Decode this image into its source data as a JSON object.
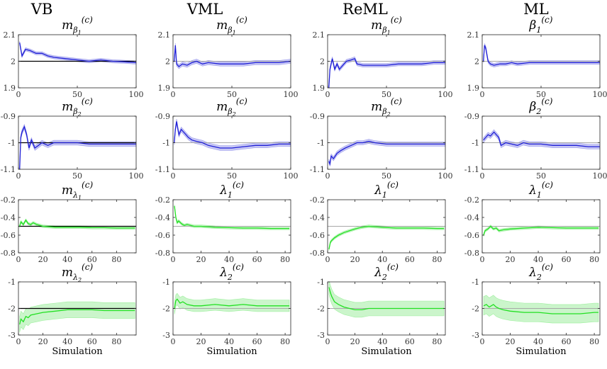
{
  "figure": {
    "columns": [
      "VB",
      "VML",
      "ReML",
      "ML"
    ],
    "xlabel": "Simulation",
    "colors": {
      "blue": "#1f1fd6",
      "blue_band": "#b6b6f0",
      "green": "#22e022",
      "green_band": "#b9f2b9",
      "ref_black": "#000000",
      "ref_gray": "#a8a8a8"
    }
  },
  "chart_data": [
    {
      "type": "line",
      "row": 0,
      "col": 0,
      "title": {
        "base": "m",
        "sub": "β",
        "subsub": "1",
        "sup": "(c)"
      },
      "x": [
        1,
        3,
        6,
        10,
        15,
        20,
        25,
        30,
        40,
        50,
        60,
        70,
        80,
        90,
        100
      ],
      "values": [
        2.07,
        2.02,
        2.045,
        2.04,
        2.03,
        2.03,
        2.02,
        2.015,
        2.01,
        2.005,
        2.0,
        2.005,
        2.0,
        1.998,
        1.995
      ],
      "band": 0.006,
      "true_value": 2.0,
      "ref_color": "black",
      "xlim": [
        0,
        100
      ],
      "ylim": [
        1.9,
        2.1
      ],
      "xticks": [
        0,
        50,
        100
      ],
      "yticks": [
        1.9,
        2,
        2.1
      ],
      "series_color": "blue",
      "show_xlabel": false
    },
    {
      "type": "line",
      "row": 0,
      "col": 1,
      "title": {
        "base": "m",
        "sub": "β",
        "subsub": "1",
        "sup": "(c)"
      },
      "x": [
        1,
        2,
        3,
        5,
        8,
        12,
        16,
        20,
        25,
        30,
        40,
        50,
        60,
        70,
        80,
        90,
        100
      ],
      "values": [
        2.0,
        2.06,
        1.99,
        1.98,
        1.99,
        1.985,
        1.995,
        2.0,
        1.99,
        1.995,
        1.99,
        1.99,
        1.99,
        1.995,
        1.995,
        1.995,
        2.0
      ],
      "band": 0.008,
      "true_value": 2.0,
      "ref_color": "gray",
      "xlim": [
        0,
        100
      ],
      "ylim": [
        1.9,
        2.1
      ],
      "xticks": [
        0,
        50,
        100
      ],
      "yticks": [
        1.9,
        2,
        2.1
      ],
      "series_color": "blue",
      "show_xlabel": false
    },
    {
      "type": "line",
      "row": 0,
      "col": 2,
      "title": {
        "base": "m",
        "sub": "β",
        "subsub": "1",
        "sup": "(c)"
      },
      "x": [
        1,
        2,
        4,
        6,
        8,
        10,
        13,
        16,
        20,
        23,
        25,
        30,
        40,
        50,
        60,
        70,
        80,
        90,
        100
      ],
      "values": [
        1.9,
        1.97,
        2.01,
        1.97,
        1.99,
        1.97,
        1.985,
        2.0,
        2.005,
        2.01,
        1.99,
        1.985,
        1.985,
        1.985,
        1.99,
        1.99,
        1.99,
        1.995,
        1.995
      ],
      "band": 0.007,
      "true_value": 2.0,
      "ref_color": "gray",
      "xlim": [
        0,
        100
      ],
      "ylim": [
        1.9,
        2.1
      ],
      "xticks": [
        0,
        50,
        100
      ],
      "yticks": [
        1.9,
        2,
        2.1
      ],
      "series_color": "blue",
      "show_xlabel": false
    },
    {
      "type": "line",
      "row": 0,
      "col": 3,
      "title": {
        "base": "β",
        "sub": "1",
        "subsub": "",
        "sup": "(c)"
      },
      "x": [
        1,
        2,
        3,
        5,
        7,
        10,
        15,
        20,
        25,
        30,
        40,
        50,
        60,
        70,
        80,
        90,
        100
      ],
      "values": [
        2.0,
        2.06,
        2.05,
        2.0,
        1.99,
        1.985,
        1.99,
        1.99,
        1.995,
        1.99,
        1.995,
        1.995,
        1.995,
        1.995,
        1.995,
        1.995,
        1.995
      ],
      "band": 0.007,
      "true_value": 2.0,
      "ref_color": "gray",
      "xlim": [
        0,
        100
      ],
      "ylim": [
        1.9,
        2.1
      ],
      "xticks": [
        0,
        50,
        100
      ],
      "yticks": [
        1.9,
        2,
        2.1
      ],
      "series_color": "blue",
      "show_xlabel": false
    },
    {
      "type": "line",
      "row": 1,
      "col": 0,
      "title": {
        "base": "m",
        "sub": "β",
        "subsub": "2",
        "sup": "(c)"
      },
      "x": [
        1,
        2,
        3,
        5,
        7,
        9,
        11,
        14,
        17,
        20,
        25,
        30,
        40,
        50,
        60,
        70,
        80,
        90,
        100
      ],
      "values": [
        -1.1,
        -0.98,
        -0.96,
        -0.94,
        -0.97,
        -1.02,
        -0.99,
        -1.02,
        -1.01,
        -1.0,
        -1.01,
        -1.0,
        -1.0,
        -1.0,
        -1.005,
        -1.005,
        -1.005,
        -1.005,
        -1.005
      ],
      "band": 0.009,
      "true_value": -1.0,
      "ref_color": "black",
      "xlim": [
        0,
        100
      ],
      "ylim": [
        -1.1,
        -0.9
      ],
      "xticks": [
        0,
        50,
        100
      ],
      "yticks": [
        -1.1,
        -1,
        -0.9
      ],
      "series_color": "blue",
      "show_xlabel": false
    },
    {
      "type": "line",
      "row": 1,
      "col": 1,
      "title": {
        "base": "m",
        "sub": "β",
        "subsub": "2",
        "sup": "(c)"
      },
      "x": [
        1,
        2,
        3,
        5,
        7,
        9,
        11,
        13,
        16,
        20,
        25,
        30,
        40,
        50,
        60,
        70,
        80,
        90,
        100
      ],
      "values": [
        -1.0,
        -0.95,
        -0.92,
        -0.97,
        -0.95,
        -0.96,
        -0.97,
        -0.98,
        -0.99,
        -0.995,
        -1.0,
        -1.01,
        -1.02,
        -1.02,
        -1.015,
        -1.01,
        -1.01,
        -1.005,
        -1.005
      ],
      "band": 0.009,
      "true_value": -1.0,
      "ref_color": "gray",
      "xlim": [
        0,
        100
      ],
      "ylim": [
        -1.1,
        -0.9
      ],
      "xticks": [
        0,
        50,
        100
      ],
      "yticks": [
        -1.1,
        -1,
        -0.9
      ],
      "series_color": "blue",
      "show_xlabel": false
    },
    {
      "type": "line",
      "row": 1,
      "col": 2,
      "title": {
        "base": "m",
        "sub": "β",
        "subsub": "2",
        "sup": "(c)"
      },
      "x": [
        1,
        2,
        3,
        5,
        8,
        11,
        15,
        20,
        25,
        30,
        35,
        40,
        50,
        60,
        70,
        80,
        90,
        100
      ],
      "values": [
        -1.07,
        -1.08,
        -1.05,
        -1.06,
        -1.04,
        -1.03,
        -1.02,
        -1.01,
        -1.0,
        -1.0,
        -0.995,
        -1.0,
        -1.005,
        -1.005,
        -1.005,
        -1.005,
        -1.005,
        -1.005
      ],
      "band": 0.008,
      "true_value": -1.0,
      "ref_color": "gray",
      "xlim": [
        0,
        100
      ],
      "ylim": [
        -1.1,
        -0.9
      ],
      "xticks": [
        0,
        50,
        100
      ],
      "yticks": [
        -1.1,
        -1,
        -0.9
      ],
      "series_color": "blue",
      "show_xlabel": false
    },
    {
      "type": "line",
      "row": 1,
      "col": 3,
      "title": {
        "base": "β",
        "sub": "2",
        "subsub": "",
        "sup": "(c)"
      },
      "x": [
        1,
        3,
        5,
        7,
        10,
        12,
        14,
        16,
        20,
        25,
        30,
        35,
        40,
        50,
        60,
        70,
        80,
        90,
        100
      ],
      "values": [
        -0.99,
        -0.98,
        -0.97,
        -0.975,
        -0.96,
        -0.97,
        -0.98,
        -1.01,
        -1.0,
        -1.005,
        -1.01,
        -1.0,
        -1.005,
        -1.005,
        -1.01,
        -1.01,
        -1.01,
        -1.015,
        -1.015
      ],
      "band": 0.009,
      "true_value": -1.0,
      "ref_color": "gray",
      "xlim": [
        0,
        100
      ],
      "ylim": [
        -1.1,
        -0.9
      ],
      "xticks": [
        0,
        50,
        100
      ],
      "yticks": [
        -1.1,
        -1,
        -0.9
      ],
      "series_color": "blue",
      "show_xlabel": false
    },
    {
      "type": "line",
      "row": 2,
      "col": 0,
      "title": {
        "base": "m",
        "sub": "λ",
        "subsub": "1",
        "sup": "(c)"
      },
      "x": [
        1,
        2,
        4,
        6,
        8,
        10,
        12,
        15,
        20,
        30,
        40,
        50,
        60,
        70,
        80,
        95
      ],
      "values": [
        -0.5,
        -0.45,
        -0.48,
        -0.43,
        -0.47,
        -0.48,
        -0.46,
        -0.48,
        -0.5,
        -0.51,
        -0.51,
        -0.51,
        -0.515,
        -0.515,
        -0.52,
        -0.52
      ],
      "band": 0.015,
      "true_value": -0.5,
      "ref_color": "black",
      "xlim": [
        0,
        96
      ],
      "ylim": [
        -0.8,
        -0.2
      ],
      "xticks": [
        0,
        20,
        40,
        60,
        80
      ],
      "yticks": [
        -0.8,
        -0.6,
        -0.4,
        -0.2
      ],
      "series_color": "green",
      "show_xlabel": false
    },
    {
      "type": "line",
      "row": 2,
      "col": 1,
      "title": {
        "base": "λ",
        "sub": "1",
        "subsub": "",
        "sup": "(c)"
      },
      "x": [
        1,
        2,
        3,
        4,
        6,
        8,
        10,
        15,
        20,
        30,
        40,
        50,
        60,
        70,
        80,
        83
      ],
      "values": [
        -0.27,
        -0.4,
        -0.46,
        -0.44,
        -0.47,
        -0.49,
        -0.48,
        -0.5,
        -0.5,
        -0.51,
        -0.515,
        -0.52,
        -0.52,
        -0.525,
        -0.525,
        -0.525
      ],
      "band": 0.015,
      "true_value": -0.5,
      "ref_color": "gray",
      "xlim": [
        0,
        84
      ],
      "ylim": [
        -0.8,
        -0.2
      ],
      "xticks": [
        0,
        20,
        40,
        60,
        80
      ],
      "yticks": [
        -0.8,
        -0.6,
        -0.4,
        -0.2
      ],
      "series_color": "green",
      "show_xlabel": false
    },
    {
      "type": "line",
      "row": 2,
      "col": 2,
      "title": {
        "base": "λ",
        "sub": "1",
        "subsub": "",
        "sup": "(c)"
      },
      "x": [
        1,
        2,
        3,
        5,
        8,
        12,
        16,
        20,
        25,
        30,
        40,
        50,
        60,
        70,
        80,
        85
      ],
      "values": [
        -0.76,
        -0.68,
        -0.66,
        -0.63,
        -0.6,
        -0.57,
        -0.55,
        -0.53,
        -0.51,
        -0.5,
        -0.51,
        -0.52,
        -0.52,
        -0.52,
        -0.525,
        -0.525
      ],
      "band": 0.015,
      "true_value": -0.5,
      "ref_color": "gray",
      "xlim": [
        0,
        86
      ],
      "ylim": [
        -0.8,
        -0.2
      ],
      "xticks": [
        0,
        20,
        40,
        60,
        80
      ],
      "yticks": [
        -0.8,
        -0.6,
        -0.4,
        -0.2
      ],
      "series_color": "green",
      "show_xlabel": false
    },
    {
      "type": "line",
      "row": 2,
      "col": 3,
      "title": {
        "base": "λ",
        "sub": "1",
        "subsub": "",
        "sup": "(c)"
      },
      "x": [
        1,
        2,
        4,
        6,
        8,
        10,
        12,
        15,
        20,
        30,
        40,
        50,
        60,
        70,
        80,
        83
      ],
      "values": [
        -0.6,
        -0.55,
        -0.53,
        -0.5,
        -0.53,
        -0.52,
        -0.55,
        -0.54,
        -0.53,
        -0.52,
        -0.51,
        -0.515,
        -0.52,
        -0.52,
        -0.52,
        -0.52
      ],
      "band": 0.015,
      "true_value": -0.5,
      "ref_color": "gray",
      "xlim": [
        0,
        84
      ],
      "ylim": [
        -0.8,
        -0.2
      ],
      "xticks": [
        0,
        20,
        40,
        60,
        80
      ],
      "yticks": [
        -0.8,
        -0.6,
        -0.4,
        -0.2
      ],
      "series_color": "green",
      "show_xlabel": false
    },
    {
      "type": "line",
      "row": 3,
      "col": 0,
      "title": {
        "base": "m",
        "sub": "λ",
        "subsub": "2",
        "sup": "(c)"
      },
      "x": [
        1,
        2,
        4,
        6,
        8,
        10,
        15,
        20,
        30,
        40,
        50,
        60,
        70,
        80,
        95
      ],
      "values": [
        -2.6,
        -2.4,
        -2.5,
        -2.3,
        -2.35,
        -2.25,
        -2.2,
        -2.15,
        -2.1,
        -2.05,
        -2.05,
        -2.05,
        -2.08,
        -2.08,
        -2.08
      ],
      "band": 0.3,
      "true_value": -2.0,
      "ref_color": "black",
      "xlim": [
        0,
        96
      ],
      "ylim": [
        -3,
        -1
      ],
      "xticks": [
        0,
        20,
        40,
        60,
        80
      ],
      "yticks": [
        -3,
        -2,
        -1
      ],
      "series_color": "green",
      "show_xlabel": true
    },
    {
      "type": "line",
      "row": 3,
      "col": 1,
      "title": {
        "base": "λ",
        "sub": "2",
        "subsub": "",
        "sup": "(c)"
      },
      "x": [
        1,
        2,
        3,
        5,
        7,
        10,
        15,
        20,
        30,
        40,
        50,
        60,
        70,
        80,
        83
      ],
      "values": [
        -2.0,
        -1.7,
        -1.65,
        -1.8,
        -1.75,
        -1.85,
        -1.9,
        -1.9,
        -1.85,
        -1.9,
        -1.85,
        -1.9,
        -1.9,
        -1.9,
        -1.9
      ],
      "band": 0.22,
      "true_value": -2.0,
      "ref_color": "gray",
      "xlim": [
        0,
        84
      ],
      "ylim": [
        -3,
        -1
      ],
      "xticks": [
        0,
        20,
        40,
        60,
        80
      ],
      "yticks": [
        -3,
        -2,
        -1
      ],
      "series_color": "green",
      "show_xlabel": true
    },
    {
      "type": "line",
      "row": 3,
      "col": 2,
      "title": {
        "base": "λ",
        "sub": "2",
        "subsub": "",
        "sup": "(c)"
      },
      "x": [
        1,
        2,
        3,
        5,
        8,
        12,
        16,
        20,
        25,
        30,
        40,
        50,
        60,
        70,
        80,
        85
      ],
      "values": [
        -1.2,
        -1.4,
        -1.55,
        -1.75,
        -1.85,
        -1.95,
        -2.0,
        -2.05,
        -2.05,
        -2.0,
        -2.0,
        -2.0,
        -2.0,
        -2.0,
        -2.0,
        -2.0
      ],
      "band": 0.28,
      "true_value": -2.0,
      "ref_color": "gray",
      "xlim": [
        0,
        86
      ],
      "ylim": [
        -3,
        -1
      ],
      "xticks": [
        0,
        20,
        40,
        60,
        80
      ],
      "yticks": [
        -3,
        -2,
        -1
      ],
      "series_color": "green",
      "show_xlabel": true
    },
    {
      "type": "line",
      "row": 3,
      "col": 3,
      "title": {
        "base": "λ",
        "sub": "2",
        "subsub": "",
        "sup": "(c)"
      },
      "x": [
        1,
        3,
        5,
        8,
        10,
        12,
        15,
        20,
        30,
        40,
        50,
        60,
        70,
        80,
        83
      ],
      "values": [
        -1.9,
        -1.85,
        -1.95,
        -1.85,
        -1.95,
        -2.0,
        -2.05,
        -2.1,
        -2.15,
        -2.15,
        -2.2,
        -2.2,
        -2.2,
        -2.15,
        -2.15
      ],
      "band": 0.35,
      "true_value": -2.0,
      "ref_color": "gray",
      "xlim": [
        0,
        84
      ],
      "ylim": [
        -3,
        -1
      ],
      "xticks": [
        0,
        20,
        40,
        60,
        80
      ],
      "yticks": [
        -3,
        -2,
        -1
      ],
      "series_color": "green",
      "show_xlabel": true
    }
  ]
}
